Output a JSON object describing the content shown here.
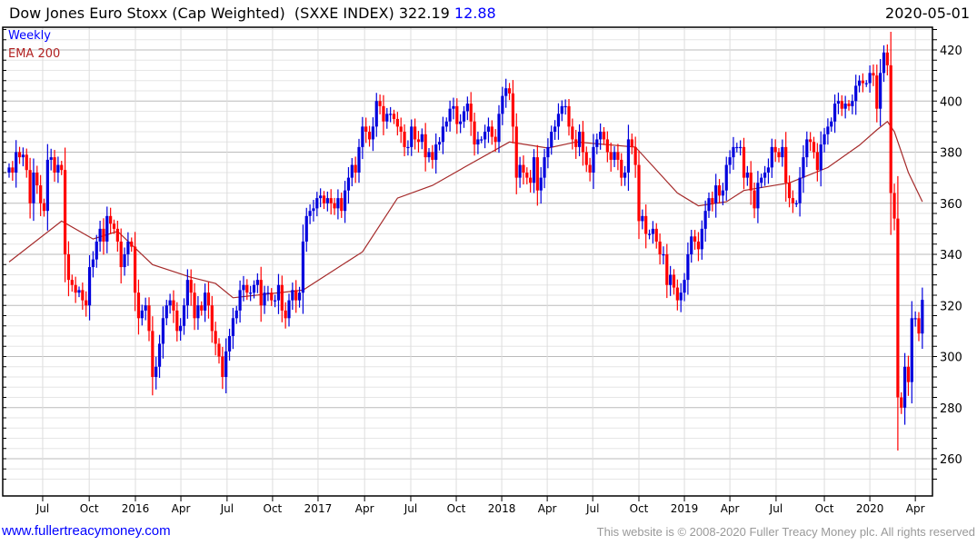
{
  "header": {
    "title": "Dow Jones Euro Stoxx (Cap Weighted)  (SXXE INDEX) 322.19 ",
    "change": "12.88",
    "date": "2020-05-01"
  },
  "legend": {
    "weekly": "Weekly",
    "ema": "EMA 200"
  },
  "footer": {
    "link": "www.fullertreacymoney.com",
    "copyright": "This website is © 2008-2020 Fuller Treacy Money plc. All rights reserved"
  },
  "colors": {
    "up": "#0000dd",
    "down": "#ff0000",
    "ema": "#a52a2a",
    "grid_major": "#bbbbbb",
    "grid_minor": "#e6e6e6"
  },
  "chart_data": {
    "type": "candlestick",
    "title": "Dow Jones Euro Stoxx (Cap Weighted) (SXXE INDEX)",
    "frequency": "Weekly",
    "ylim": [
      250,
      428
    ],
    "yticks": [
      260,
      280,
      300,
      320,
      340,
      360,
      380,
      400,
      420
    ],
    "first_open": 372,
    "closes": [
      374,
      372,
      380,
      378,
      379,
      373,
      360,
      372,
      367,
      360,
      357,
      377,
      378,
      372,
      375,
      373,
      340,
      330,
      328,
      325,
      326,
      322,
      320,
      335,
      338,
      345,
      350,
      345,
      355,
      352,
      350,
      345,
      335,
      340,
      345,
      343,
      325,
      315,
      318,
      320,
      310,
      292,
      296,
      305,
      315,
      320,
      322,
      318,
      310,
      312,
      320,
      330,
      325,
      315,
      320,
      318,
      325,
      320,
      310,
      305,
      300,
      292,
      302,
      308,
      315,
      318,
      326,
      328,
      325,
      325,
      328,
      330,
      320,
      325,
      325,
      322,
      322,
      328,
      318,
      315,
      322,
      326,
      322,
      325,
      345,
      355,
      357,
      358,
      362,
      363,
      360,
      362,
      360,
      358,
      362,
      357,
      365,
      370,
      375,
      372,
      382,
      390,
      388,
      385,
      390,
      400,
      398,
      392,
      395,
      395,
      393,
      390,
      388,
      382,
      382,
      390,
      385,
      384,
      387,
      378,
      380,
      377,
      383,
      384,
      390,
      392,
      397,
      398,
      391,
      392,
      396,
      399,
      392,
      383,
      385,
      385,
      388,
      390,
      386,
      384,
      395,
      402,
      405,
      403,
      390,
      370,
      375,
      372,
      370,
      368,
      378,
      365,
      370,
      378,
      382,
      388,
      390,
      395,
      398,
      398,
      390,
      385,
      382,
      388,
      380,
      375,
      372,
      382,
      385,
      388,
      385,
      380,
      377,
      380,
      377,
      370,
      372,
      385,
      382,
      375,
      353,
      355,
      348,
      348,
      350,
      345,
      340,
      340,
      328,
      332,
      327,
      322,
      325,
      330,
      340,
      347,
      345,
      342,
      350,
      357,
      362,
      360,
      367,
      363,
      365,
      375,
      378,
      382,
      382,
      382,
      370,
      372,
      365,
      358,
      368,
      370,
      372,
      374,
      382,
      380,
      378,
      382,
      368,
      362,
      360,
      360,
      370,
      378,
      385,
      384,
      380,
      373,
      383,
      387,
      390,
      392,
      399,
      400,
      397,
      399,
      398,
      400,
      406,
      408,
      407,
      407,
      411,
      410,
      397,
      411,
      419,
      414,
      364,
      354,
      284,
      280,
      296,
      290,
      315,
      315,
      309,
      322.19
    ],
    "ema_200": [
      [
        0,
        337
      ],
      [
        15,
        353
      ],
      [
        24,
        346
      ],
      [
        31,
        349
      ],
      [
        41,
        336
      ],
      [
        52,
        331
      ],
      [
        59,
        328.6
      ],
      [
        64,
        323
      ],
      [
        84,
        326
      ],
      [
        101,
        341
      ],
      [
        111,
        362
      ],
      [
        121,
        367
      ],
      [
        130,
        374
      ],
      [
        143,
        384
      ],
      [
        154,
        381.6
      ],
      [
        162,
        384
      ],
      [
        179,
        382
      ],
      [
        191,
        364
      ],
      [
        197,
        359
      ],
      [
        205,
        360.6
      ],
      [
        210,
        365
      ],
      [
        223,
        368
      ],
      [
        234,
        374
      ],
      [
        243,
        382.7
      ],
      [
        248,
        388.7
      ],
      [
        251,
        392
      ],
      [
        253,
        388
      ],
      [
        257,
        372
      ],
      [
        261,
        360.6
      ]
    ],
    "xticks": [
      {
        "week": 9.6,
        "label": "Jul"
      },
      {
        "week": 22.9,
        "label": "Oct"
      },
      {
        "week": 36.1,
        "label": "2016"
      },
      {
        "week": 49.1,
        "label": "Apr"
      },
      {
        "week": 62.3,
        "label": "Jul"
      },
      {
        "week": 75.3,
        "label": "Oct"
      },
      {
        "week": 88.3,
        "label": "2017"
      },
      {
        "week": 101.6,
        "label": "Apr"
      },
      {
        "week": 114.8,
        "label": "Jul"
      },
      {
        "week": 127.8,
        "label": "Oct"
      },
      {
        "week": 140.8,
        "label": "2018"
      },
      {
        "week": 153.8,
        "label": "Apr"
      },
      {
        "week": 166.8,
        "label": "Jul"
      },
      {
        "week": 180,
        "label": "Oct"
      },
      {
        "week": 193,
        "label": "2019"
      },
      {
        "week": 206,
        "label": "Apr"
      },
      {
        "week": 219.2,
        "label": "Jul"
      },
      {
        "week": 233,
        "label": "Oct"
      },
      {
        "week": 246,
        "label": "2020"
      },
      {
        "week": 259,
        "label": "Apr"
      }
    ]
  }
}
